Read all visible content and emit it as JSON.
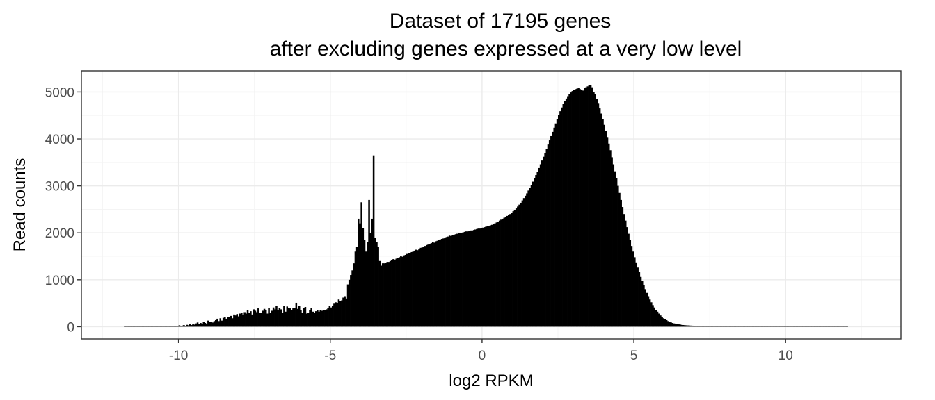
{
  "chart_data": {
    "type": "bar",
    "title": "Dataset of 17195 genes",
    "subtitle": "after excluding genes expressed at a very low level",
    "xlabel": "log2 RPKM",
    "ylabel": "Read counts",
    "xlim": [
      -13.2,
      13.8
    ],
    "ylim": [
      -260,
      5450
    ],
    "x_ticks": [
      -10,
      -5,
      0,
      5,
      10
    ],
    "x_tick_labels": [
      "-10",
      "-5",
      "0",
      "5",
      "10"
    ],
    "y_ticks": [
      0,
      1000,
      2000,
      3000,
      4000,
      5000
    ],
    "y_tick_labels": [
      "0",
      "1000",
      "2000",
      "3000",
      "4000",
      "5000"
    ],
    "grid": true,
    "bar_color": "#000000",
    "bin_width": 0.05,
    "bin_start": -11.8,
    "values": [
      0,
      0,
      0,
      0,
      0,
      0,
      0,
      0,
      0,
      0,
      0,
      0,
      0,
      0,
      0,
      0,
      0,
      0,
      0,
      0,
      0,
      0,
      0,
      0,
      0,
      0,
      0,
      0,
      0,
      0,
      0,
      0,
      0,
      0,
      0,
      0,
      30,
      0,
      25,
      35,
      20,
      40,
      30,
      50,
      35,
      60,
      45,
      70,
      90,
      60,
      80,
      60,
      100,
      80,
      50,
      130,
      100,
      110,
      90,
      120,
      140,
      170,
      120,
      180,
      130,
      190,
      200,
      170,
      200,
      210,
      230,
      180,
      260,
      240,
      270,
      220,
      280,
      300,
      250,
      310,
      280,
      350,
      300,
      330,
      260,
      370,
      340,
      310,
      390,
      300,
      300,
      340,
      380,
      360,
      280,
      400,
      300,
      340,
      410,
      370,
      440,
      350,
      400,
      370,
      300,
      440,
      320,
      430,
      400,
      390,
      360,
      400,
      400,
      510,
      380,
      440,
      350,
      300,
      400,
      420,
      280,
      300,
      350,
      400,
      320,
      300,
      330,
      350,
      320,
      360,
      340,
      350,
      360,
      370,
      400,
      450,
      410,
      450,
      490,
      520,
      500,
      580,
      550,
      560,
      620,
      650,
      600,
      900,
      1000,
      1100,
      1200,
      1350,
      1600,
      1700,
      2300,
      2200,
      2650,
      2100,
      1850,
      1600,
      1800,
      2700,
      2000,
      2300,
      3650,
      1900,
      1800,
      1700,
      1400,
      1300,
      1350,
      1350,
      1360,
      1380,
      1380,
      1400,
      1420,
      1440,
      1430,
      1450,
      1470,
      1480,
      1500,
      1490,
      1520,
      1530,
      1550,
      1570,
      1560,
      1590,
      1600,
      1620,
      1640,
      1630,
      1660,
      1680,
      1690,
      1700,
      1720,
      1740,
      1750,
      1760,
      1780,
      1800,
      1790,
      1820,
      1830,
      1850,
      1860,
      1870,
      1880,
      1900,
      1910,
      1920,
      1940,
      1930,
      1950,
      1960,
      1970,
      1980,
      1990,
      2000,
      2000,
      2010,
      2020,
      2030,
      2030,
      2040,
      2050,
      2050,
      2060,
      2070,
      2080,
      2090,
      2090,
      2100,
      2110,
      2120,
      2130,
      2140,
      2150,
      2160,
      2170,
      2190,
      2200,
      2220,
      2240,
      2260,
      2280,
      2300,
      2320,
      2340,
      2360,
      2380,
      2400,
      2430,
      2460,
      2490,
      2520,
      2560,
      2600,
      2640,
      2690,
      2740,
      2790,
      2840,
      2900,
      2960,
      3020,
      3090,
      3160,
      3230,
      3300,
      3380,
      3460,
      3540,
      3620,
      3700,
      3790,
      3880,
      3970,
      4060,
      4150,
      4240,
      4330,
      4420,
      4510,
      4590,
      4670,
      4740,
      4800,
      4860,
      4910,
      4950,
      4990,
      5020,
      5040,
      5060,
      5070,
      5080,
      5060,
      5050,
      5030,
      5080,
      5100,
      5120,
      5140,
      5150,
      5100,
      5000,
      4950,
      4850,
      4750,
      4650,
      4540,
      4420,
      4300,
      4170,
      4040,
      3900,
      3760,
      3610,
      3460,
      3310,
      3160,
      3000,
      2850,
      2700,
      2550,
      2400,
      2260,
      2120,
      1980,
      1850,
      1720,
      1600,
      1480,
      1370,
      1260,
      1160,
      1060,
      970,
      880,
      800,
      720,
      650,
      580,
      520,
      460,
      410,
      360,
      320,
      280,
      240,
      210,
      180,
      160,
      140,
      120,
      105,
      90,
      80,
      70,
      60,
      55,
      50,
      45,
      40,
      36,
      32,
      30,
      28,
      26,
      24,
      22,
      20,
      18,
      17,
      16,
      15,
      14,
      13,
      12,
      11,
      10,
      10,
      9,
      9,
      8,
      8,
      7,
      7,
      6,
      6,
      6,
      5,
      5,
      5,
      5,
      4,
      4,
      4,
      4,
      4,
      3,
      3,
      3,
      3,
      3,
      3,
      3,
      3,
      2,
      2,
      2,
      2,
      2,
      2,
      2,
      2,
      2,
      2,
      2,
      2,
      2,
      2,
      2,
      2,
      2,
      2,
      2,
      2,
      2,
      2,
      2,
      2,
      2,
      2,
      2,
      2,
      2,
      2,
      2,
      2,
      2,
      2,
      2,
      2,
      2,
      2,
      2,
      2,
      2,
      2,
      2,
      2,
      2,
      2,
      2,
      2,
      2,
      2,
      2,
      2,
      2,
      2,
      2,
      2,
      2,
      2,
      2,
      2,
      2,
      2,
      2,
      2,
      2
    ]
  }
}
